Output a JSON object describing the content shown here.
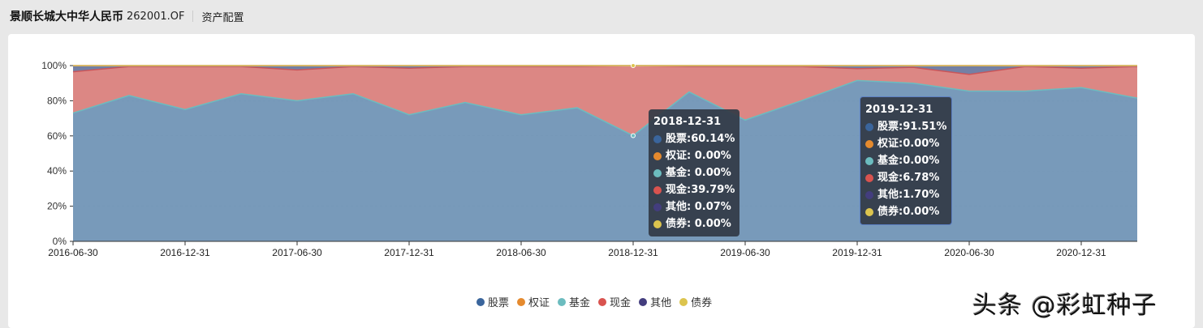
{
  "header": {
    "fund_name": "景顺长城大中华人民币",
    "fund_code": "262001.OF",
    "tab": "资产配置"
  },
  "legend": [
    {
      "label": "股票",
      "color": "#3a659c"
    },
    {
      "label": "权证",
      "color": "#e58a2e"
    },
    {
      "label": "基金",
      "color": "#6cbcbf"
    },
    {
      "label": "现金",
      "color": "#d9534f"
    },
    {
      "label": "其他",
      "color": "#433d7e"
    },
    {
      "label": "债券",
      "color": "#dcc44e"
    }
  ],
  "tooltips": [
    {
      "date": "2018-12-31",
      "rows": [
        {
          "label": "股票:",
          "value": "60.14%"
        },
        {
          "label": "权证:",
          "value": " 0.00%"
        },
        {
          "label": "基金:",
          "value": " 0.00%"
        },
        {
          "label": "现金:",
          "value": "39.79%"
        },
        {
          "label": "其他:",
          "value": " 0.07%"
        },
        {
          "label": "债券:",
          "value": " 0.00%"
        }
      ]
    },
    {
      "date": "2019-12-31",
      "rows": [
        {
          "label": "股票:",
          "value": "91.51%"
        },
        {
          "label": "权证:",
          "value": "0.00%"
        },
        {
          "label": "基金:",
          "value": "0.00%"
        },
        {
          "label": "现金:",
          "value": "6.78%"
        },
        {
          "label": "其他:",
          "value": "1.70%"
        },
        {
          "label": "债券:",
          "value": "0.00%"
        }
      ]
    }
  ],
  "watermark": "头条 @彩虹种子",
  "chart_data": {
    "type": "area",
    "stacked": true,
    "title": "资产配置",
    "xlabel": "",
    "ylabel": "",
    "ylim": [
      0,
      100
    ],
    "y_ticks": [
      "0%",
      "20%",
      "40%",
      "60%",
      "80%",
      "100%"
    ],
    "x_tick_labels": [
      "2016-06-30",
      "2016-12-31",
      "2017-06-30",
      "2017-12-31",
      "2018-06-30",
      "2018-12-31",
      "2019-06-30",
      "2019-12-31",
      "2020-06-30",
      "2020-12-31"
    ],
    "grid": true,
    "legend_position": "bottom",
    "x": [
      "2016-06-30",
      "2016-09-30",
      "2016-12-31",
      "2017-03-31",
      "2017-06-30",
      "2017-09-30",
      "2017-12-31",
      "2018-03-31",
      "2018-06-30",
      "2018-09-30",
      "2018-12-31",
      "2019-03-31",
      "2019-06-30",
      "2019-09-30",
      "2019-12-31",
      "2020-03-31",
      "2020-06-30",
      "2020-09-30",
      "2020-12-31",
      "2021-03-31"
    ],
    "series": [
      {
        "name": "股票",
        "values": [
          73,
          83,
          75,
          84,
          80,
          84,
          72,
          79,
          72,
          76,
          60.14,
          85,
          69,
          80,
          91.51,
          90,
          85.5,
          85.5,
          87.5,
          81.5
        ]
      },
      {
        "name": "权证",
        "values": [
          0,
          0,
          0,
          0,
          0,
          0,
          0,
          0,
          0,
          0,
          0,
          0,
          0,
          0,
          0,
          0,
          0,
          0,
          0,
          0
        ]
      },
      {
        "name": "基金",
        "values": [
          0,
          0,
          0,
          0,
          0,
          0,
          0,
          0,
          0,
          0,
          0,
          0,
          0,
          0,
          0,
          0,
          0,
          0,
          0,
          0
        ]
      },
      {
        "name": "现金",
        "values": [
          23.5,
          16.5,
          24.5,
          15.5,
          17.5,
          15.5,
          26.5,
          20.5,
          27.5,
          23.5,
          39.79,
          14.5,
          30.5,
          19.5,
          6.78,
          9,
          9.5,
          14,
          11,
          18
        ]
      },
      {
        "name": "其他",
        "values": [
          3,
          0.3,
          0.3,
          0.3,
          2,
          0.3,
          1,
          0.3,
          0.3,
          0.3,
          0.07,
          0.3,
          0.3,
          0.3,
          1.7,
          1,
          4.5,
          0.3,
          1.3,
          0.3
        ]
      },
      {
        "name": "债券",
        "values": [
          0.5,
          0.2,
          0.2,
          0.2,
          0.5,
          0.2,
          0.5,
          0.2,
          0.2,
          0.2,
          0,
          0.2,
          0.2,
          0.2,
          0,
          0,
          0.5,
          0.2,
          0.2,
          0.2
        ]
      }
    ]
  }
}
